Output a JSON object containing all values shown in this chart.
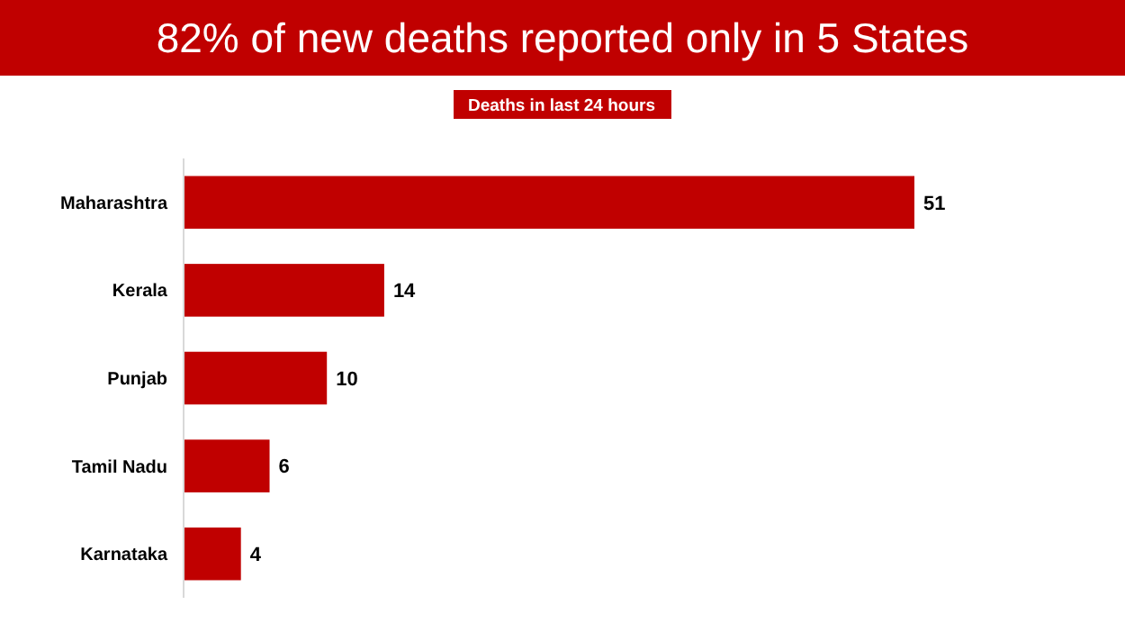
{
  "chart_data": {
    "type": "bar",
    "orientation": "horizontal",
    "title": "82% of new deaths reported only in 5 States",
    "subtitle": "Deaths in last 24 hours",
    "categories": [
      "Maharashtra",
      "Kerala",
      "Punjab",
      "Tamil Nadu",
      "Karnataka"
    ],
    "values": [
      51,
      14,
      10,
      6,
      4
    ],
    "color": "#c00000",
    "data_labels": true
  }
}
